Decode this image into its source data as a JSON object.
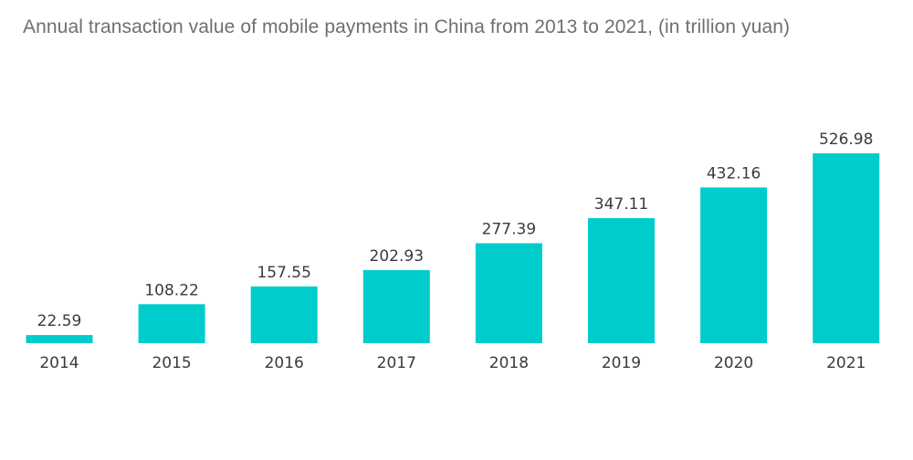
{
  "chart_data": {
    "type": "bar",
    "title": "Annual transaction value of mobile payments in China from 2013 to 2021, (in trillion yuan)",
    "xlabel": "",
    "ylabel": "",
    "categories": [
      "2014",
      "2015",
      "2016",
      "2017",
      "2018",
      "2019",
      "2020",
      "2021"
    ],
    "values": [
      22.59,
      108.22,
      157.55,
      202.93,
      277.39,
      347.11,
      432.16,
      526.98
    ],
    "value_labels": [
      "22.59",
      "108.22",
      "157.55",
      "202.93",
      "277.39",
      "347.11",
      "432.16",
      "526.98"
    ],
    "ylim": [
      0,
      526.98
    ],
    "grid": false,
    "legend": "none",
    "bar_color": "#00CCCC"
  }
}
